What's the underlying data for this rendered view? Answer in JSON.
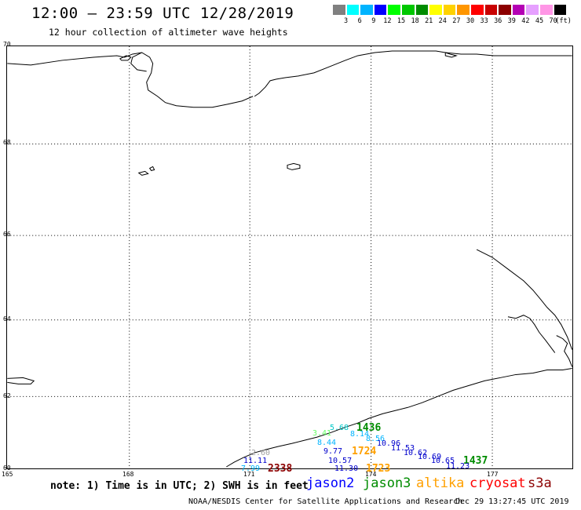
{
  "title": "12:00 – 23:59 UTC 12/28/2019",
  "subtitle": "12 hour collection of altimeter wave heights",
  "colorbar": {
    "unit": "(ft)",
    "colors": [
      "#808080",
      "#00ffff",
      "#00b4ff",
      "#0000ff",
      "#00ff00",
      "#00c800",
      "#008c00",
      "#ffff00",
      "#ffd200",
      "#ff9600",
      "#ff0000",
      "#c80000",
      "#8c0000",
      "#b400b4",
      "#e6a0ff",
      "#ff96e6",
      "#000000"
    ],
    "ticks": [
      "3",
      "6",
      "9",
      "12",
      "15",
      "18",
      "21",
      "24",
      "27",
      "30",
      "33",
      "36",
      "39",
      "42",
      "45",
      "70"
    ]
  },
  "map": {
    "lat_labels": [
      "70",
      "68",
      "66",
      "64",
      "62",
      "60"
    ],
    "lon_labels": [
      "165",
      "168",
      "171",
      "174",
      "177"
    ]
  },
  "observations": [
    {
      "text": "5.68",
      "color": "#00c8c8"
    },
    {
      "text": "1436",
      "color": "#008c00"
    },
    {
      "text": "3.41",
      "color": "#66ff66"
    },
    {
      "text": "8.14",
      "color": "#00b4ff"
    },
    {
      "text": "8.56",
      "color": "#00b4ff"
    },
    {
      "text": "8.44",
      "color": "#00b4ff"
    },
    {
      "text": "10.96",
      "color": "#0000cc"
    },
    {
      "text": "11.53",
      "color": "#0000cc"
    },
    {
      "text": "9.77",
      "color": "#0000cc"
    },
    {
      "text": "1724",
      "color": "#ffa000"
    },
    {
      "text": "10.62",
      "color": "#0000cc"
    },
    {
      "text": "10.69",
      "color": "#0000cc"
    },
    {
      "text": "10.65",
      "color": "#0000cc"
    },
    {
      "text": "1437",
      "color": "#008c00"
    },
    {
      "text": "2.60",
      "color": "#a0a0a0"
    },
    {
      "text": "11.11",
      "color": "#0000cc"
    },
    {
      "text": "10.57",
      "color": "#0000cc"
    },
    {
      "text": "11.23",
      "color": "#0000cc"
    },
    {
      "text": "7.99",
      "color": "#00b4ff"
    },
    {
      "text": "2338",
      "color": "#8c0000"
    },
    {
      "text": "11.30",
      "color": "#0000cc"
    },
    {
      "text": "1723",
      "color": "#ffa000"
    }
  ],
  "footer": {
    "note": "note: 1) Time is in UTC; 2) SWH is in feet",
    "satellites": [
      {
        "name": "jason2",
        "color": "#0000ff"
      },
      {
        "name": "jason3",
        "color": "#008c00"
      },
      {
        "name": "altika",
        "color": "#ffa000"
      },
      {
        "name": "cryosat",
        "color": "#ff0000"
      },
      {
        "name": "s3a",
        "color": "#8c0000"
      }
    ],
    "credit": "NOAA/NESDIS Center for Satellite Applications and Research",
    "timestamp": "Dec 29 13:27:45 UTC 2019"
  }
}
